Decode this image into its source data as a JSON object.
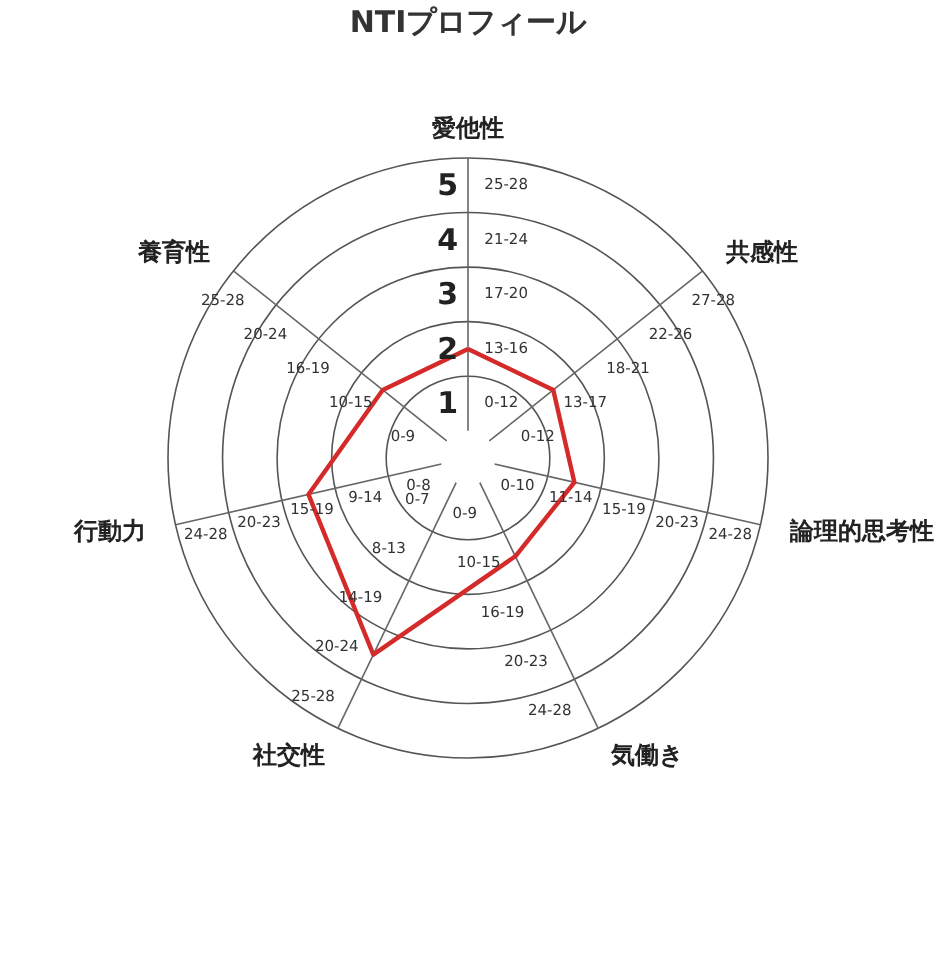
{
  "chart_data": {
    "type": "radar",
    "title": "NTIプロフィール",
    "categories": [
      "愛他性",
      "共感性",
      "論理的思考性",
      "気働き",
      "社交性",
      "行動力",
      "養育性"
    ],
    "series": [
      {
        "color": "#d42a2a",
        "values": [
          2,
          2,
          2,
          2,
          4,
          3,
          2
        ]
      }
    ],
    "ylim": [
      0,
      5.5
    ],
    "yticks": [
      1,
      2,
      3,
      4,
      5
    ],
    "grid": true,
    "line_style": "solid",
    "annotations": [
      "0-12",
      "13-16",
      "17-20",
      "21-24",
      "25-28",
      "0-12",
      "13-17",
      "18-21",
      "22-26",
      "27-28",
      "0-10",
      "11-14",
      "15-19",
      "20-23",
      "24-28",
      "0-9",
      "10-15",
      "16-19",
      "20-23",
      "24-28",
      "0-7",
      "8-13",
      "14-19",
      "20-24",
      "25-28",
      "0-8",
      "9-14",
      "15-19",
      "20-23",
      "24-28",
      "0-9",
      "10-15",
      "16-19",
      "20-24",
      "25-28"
    ]
  }
}
